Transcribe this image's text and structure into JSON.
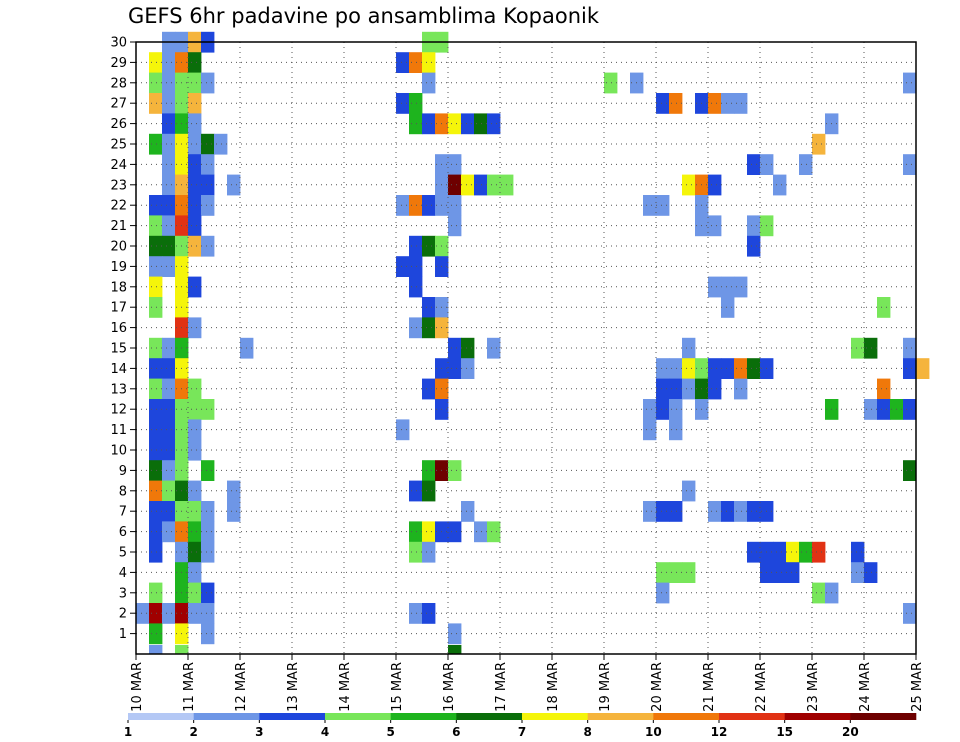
{
  "title": "GEFS 6hr padavine po ansamblima Kopaonik",
  "chart_data": {
    "type": "heatmap",
    "title": "GEFS 6hr padavine po ansamblima Kopaonik",
    "xlabel": "",
    "ylabel": "",
    "x_tick_labels": [
      "10 MAR",
      "11 MAR",
      "12 MAR",
      "13 MAR",
      "14 MAR",
      "15 MAR",
      "16 MAR",
      "17 MAR",
      "18 MAR",
      "19 MAR",
      "20 MAR",
      "21 MAR",
      "22 MAR",
      "23 MAR",
      "24 MAR",
      "25 MAR"
    ],
    "y_tick_labels": [
      "1",
      "2",
      "3",
      "4",
      "5",
      "6",
      "7",
      "8",
      "9",
      "10",
      "11",
      "12",
      "13",
      "14",
      "15",
      "16",
      "17",
      "18",
      "19",
      "20",
      "21",
      "22",
      "23",
      "24",
      "25",
      "26",
      "27",
      "28",
      "29",
      "30"
    ],
    "x_range_days": [
      10,
      25
    ],
    "y_range": [
      0,
      30
    ],
    "step_hours": 6,
    "grid": true,
    "legend_position": "bottom",
    "legend": {
      "colors": [
        "#b4c8f5",
        "#6e96e6",
        "#1e46dc",
        "#78e65a",
        "#1eb41e",
        "#0a6e0a",
        "#f5f50a",
        "#f5b43c",
        "#f0780a",
        "#e13214",
        "#a00000",
        "#6e0000"
      ],
      "labels": [
        "1",
        "2",
        "3",
        "4",
        "5",
        "6",
        "7",
        "8",
        "10",
        "12",
        "15",
        "20"
      ]
    },
    "cells": [
      [
        30,
        10.5,
        1
      ],
      [
        30,
        10.75,
        1
      ],
      [
        30,
        11,
        7
      ],
      [
        30,
        11.25,
        2
      ],
      [
        30,
        15.5,
        3
      ],
      [
        30,
        15.75,
        3
      ],
      [
        29,
        10.25,
        6
      ],
      [
        29,
        10.5,
        1
      ],
      [
        29,
        10.75,
        8
      ],
      [
        29,
        11,
        5
      ],
      [
        29,
        15,
        2
      ],
      [
        29,
        15.25,
        8
      ],
      [
        29,
        15.5,
        6
      ],
      [
        28,
        10.25,
        3
      ],
      [
        28,
        10.5,
        1
      ],
      [
        28,
        10.75,
        3
      ],
      [
        28,
        11,
        3
      ],
      [
        28,
        11.25,
        1
      ],
      [
        28,
        15.5,
        1
      ],
      [
        28,
        19,
        3
      ],
      [
        28,
        19.5,
        1
      ],
      [
        28,
        24.75,
        1
      ],
      [
        27,
        10.25,
        7
      ],
      [
        27,
        10.5,
        1
      ],
      [
        27,
        10.75,
        3
      ],
      [
        27,
        11,
        7
      ],
      [
        27,
        15,
        2
      ],
      [
        27,
        15.25,
        4
      ],
      [
        27,
        20,
        2
      ],
      [
        27,
        20.25,
        8
      ],
      [
        27,
        20.75,
        2
      ],
      [
        27,
        21,
        8
      ],
      [
        27,
        21.25,
        1
      ],
      [
        27,
        21.5,
        1
      ],
      [
        26,
        10.5,
        2
      ],
      [
        26,
        10.75,
        4
      ],
      [
        26,
        11,
        1
      ],
      [
        26,
        15.25,
        4
      ],
      [
        26,
        15.5,
        2
      ],
      [
        26,
        15.75,
        8
      ],
      [
        26,
        16,
        6
      ],
      [
        26,
        16.25,
        2
      ],
      [
        26,
        16.5,
        5
      ],
      [
        26,
        16.75,
        2
      ],
      [
        26,
        23.25,
        1
      ],
      [
        25,
        10.25,
        4
      ],
      [
        25,
        10.5,
        1
      ],
      [
        25,
        10.75,
        6
      ],
      [
        25,
        11,
        1
      ],
      [
        25,
        11.25,
        5
      ],
      [
        25,
        11.5,
        1
      ],
      [
        25,
        23,
        7
      ],
      [
        24,
        10.5,
        1
      ],
      [
        24,
        10.75,
        6
      ],
      [
        24,
        11,
        2
      ],
      [
        24,
        11.25,
        1
      ],
      [
        24,
        15.75,
        1
      ],
      [
        24,
        16,
        1
      ],
      [
        24,
        21.75,
        2
      ],
      [
        24,
        22,
        1
      ],
      [
        24,
        22.75,
        1
      ],
      [
        24,
        24.75,
        1
      ],
      [
        23,
        10.5,
        1
      ],
      [
        23,
        10.75,
        7
      ],
      [
        23,
        11,
        2
      ],
      [
        23,
        11.25,
        2
      ],
      [
        23,
        11.75,
        1
      ],
      [
        23,
        15.75,
        1
      ],
      [
        23,
        16,
        11
      ],
      [
        23,
        16.25,
        6
      ],
      [
        23,
        16.5,
        2
      ],
      [
        23,
        16.75,
        3
      ],
      [
        23,
        17,
        3
      ],
      [
        23,
        20.5,
        6
      ],
      [
        23,
        20.75,
        8
      ],
      [
        23,
        21,
        2
      ],
      [
        23,
        22.25,
        1
      ],
      [
        22,
        10.25,
        2
      ],
      [
        22,
        10.5,
        2
      ],
      [
        22,
        10.75,
        8
      ],
      [
        22,
        11,
        2
      ],
      [
        22,
        11.25,
        1
      ],
      [
        22,
        15,
        1
      ],
      [
        22,
        15.25,
        8
      ],
      [
        22,
        15.5,
        2
      ],
      [
        22,
        15.75,
        1
      ],
      [
        22,
        16,
        1
      ],
      [
        22,
        19.75,
        1
      ],
      [
        22,
        20,
        1
      ],
      [
        22,
        20.75,
        1
      ],
      [
        21,
        10.25,
        3
      ],
      [
        21,
        10.5,
        1
      ],
      [
        21,
        10.75,
        9
      ],
      [
        21,
        11,
        2
      ],
      [
        21,
        16,
        1
      ],
      [
        21,
        20.75,
        1
      ],
      [
        21,
        21,
        1
      ],
      [
        21,
        21.75,
        1
      ],
      [
        21,
        22,
        3
      ],
      [
        20,
        10.25,
        5
      ],
      [
        20,
        10.5,
        5
      ],
      [
        20,
        10.75,
        3
      ],
      [
        20,
        11,
        7
      ],
      [
        20,
        11.25,
        1
      ],
      [
        20,
        15.25,
        2
      ],
      [
        20,
        15.5,
        5
      ],
      [
        20,
        15.75,
        3
      ],
      [
        20,
        21.75,
        2
      ],
      [
        19,
        10.25,
        1
      ],
      [
        19,
        10.5,
        1
      ],
      [
        19,
        10.75,
        6
      ],
      [
        19,
        15,
        2
      ],
      [
        19,
        15.25,
        2
      ],
      [
        19,
        15.75,
        2
      ],
      [
        18,
        10.25,
        6
      ],
      [
        18,
        10.75,
        6
      ],
      [
        18,
        11,
        2
      ],
      [
        18,
        15.25,
        2
      ],
      [
        18,
        21,
        1
      ],
      [
        18,
        21.25,
        1
      ],
      [
        18,
        21.5,
        1
      ],
      [
        17,
        10.25,
        3
      ],
      [
        17,
        10.75,
        6
      ],
      [
        17,
        15.5,
        2
      ],
      [
        17,
        15.75,
        1
      ],
      [
        17,
        21.25,
        1
      ],
      [
        17,
        24.25,
        3
      ],
      [
        16,
        10.75,
        9
      ],
      [
        16,
        11,
        1
      ],
      [
        16,
        15.25,
        1
      ],
      [
        16,
        15.5,
        5
      ],
      [
        16,
        15.75,
        7
      ],
      [
        15,
        10.25,
        3
      ],
      [
        15,
        10.5,
        1
      ],
      [
        15,
        10.75,
        4
      ],
      [
        15,
        12,
        1
      ],
      [
        15,
        16,
        2
      ],
      [
        15,
        16.25,
        5
      ],
      [
        15,
        16.75,
        1
      ],
      [
        15,
        20.5,
        1
      ],
      [
        15,
        23.75,
        3
      ],
      [
        15,
        24,
        5
      ],
      [
        15,
        24.75,
        1
      ],
      [
        14,
        10.25,
        2
      ],
      [
        14,
        10.5,
        2
      ],
      [
        14,
        10.75,
        6
      ],
      [
        14,
        15.75,
        2
      ],
      [
        14,
        16,
        2
      ],
      [
        14,
        16.25,
        1
      ],
      [
        14,
        20,
        1
      ],
      [
        14,
        20.25,
        1
      ],
      [
        14,
        20.5,
        6
      ],
      [
        14,
        20.75,
        3
      ],
      [
        14,
        21,
        2
      ],
      [
        14,
        21.25,
        2
      ],
      [
        14,
        21.5,
        8
      ],
      [
        14,
        21.75,
        5
      ],
      [
        14,
        22,
        2
      ],
      [
        14,
        24.75,
        2
      ],
      [
        14,
        25,
        7
      ],
      [
        13,
        10.25,
        3
      ],
      [
        13,
        10.5,
        1
      ],
      [
        13,
        10.75,
        8
      ],
      [
        13,
        11,
        3
      ],
      [
        13,
        15.5,
        2
      ],
      [
        13,
        15.75,
        8
      ],
      [
        13,
        20,
        2
      ],
      [
        13,
        20.25,
        2
      ],
      [
        13,
        20.5,
        1
      ],
      [
        13,
        20.75,
        5
      ],
      [
        13,
        21,
        2
      ],
      [
        13,
        21.5,
        1
      ],
      [
        13,
        24.25,
        8
      ],
      [
        12,
        10.25,
        2
      ],
      [
        12,
        10.5,
        2
      ],
      [
        12,
        10.75,
        3
      ],
      [
        12,
        11,
        3
      ],
      [
        12,
        11.25,
        3
      ],
      [
        12,
        15.75,
        2
      ],
      [
        12,
        19.75,
        1
      ],
      [
        12,
        20,
        2
      ],
      [
        12,
        20.25,
        1
      ],
      [
        12,
        20.75,
        1
      ],
      [
        12,
        23.25,
        4
      ],
      [
        12,
        24,
        1
      ],
      [
        12,
        24.25,
        2
      ],
      [
        12,
        24.5,
        4
      ],
      [
        12,
        24.75,
        2
      ],
      [
        11,
        10.25,
        2
      ],
      [
        11,
        10.5,
        2
      ],
      [
        11,
        10.75,
        3
      ],
      [
        11,
        11,
        1
      ],
      [
        11,
        15,
        1
      ],
      [
        11,
        19.75,
        1
      ],
      [
        11,
        20.25,
        1
      ],
      [
        10,
        10.25,
        2
      ],
      [
        10,
        10.5,
        2
      ],
      [
        10,
        10.75,
        3
      ],
      [
        10,
        11,
        1
      ],
      [
        9,
        10.25,
        5
      ],
      [
        9,
        10.5,
        1
      ],
      [
        9,
        10.75,
        3
      ],
      [
        9,
        11.25,
        4
      ],
      [
        9,
        15.5,
        4
      ],
      [
        9,
        15.75,
        11
      ],
      [
        9,
        16,
        3
      ],
      [
        9,
        24.75,
        5
      ],
      [
        8,
        10.25,
        8
      ],
      [
        8,
        10.5,
        3
      ],
      [
        8,
        10.75,
        5
      ],
      [
        8,
        11,
        1
      ],
      [
        8,
        11.75,
        1
      ],
      [
        8,
        15.25,
        2
      ],
      [
        8,
        15.5,
        5
      ],
      [
        8,
        20.5,
        1
      ],
      [
        7,
        10.25,
        2
      ],
      [
        7,
        10.5,
        2
      ],
      [
        7,
        10.75,
        3
      ],
      [
        7,
        11,
        3
      ],
      [
        7,
        11.25,
        1
      ],
      [
        7,
        11.75,
        1
      ],
      [
        7,
        16.25,
        1
      ],
      [
        7,
        19.75,
        1
      ],
      [
        7,
        20,
        2
      ],
      [
        7,
        20.25,
        2
      ],
      [
        7,
        21,
        1
      ],
      [
        7,
        21.25,
        2
      ],
      [
        7,
        21.5,
        1
      ],
      [
        7,
        21.75,
        2
      ],
      [
        7,
        22,
        2
      ],
      [
        6,
        10.25,
        2
      ],
      [
        6,
        10.5,
        1
      ],
      [
        6,
        10.75,
        8
      ],
      [
        6,
        11,
        4
      ],
      [
        6,
        11.25,
        1
      ],
      [
        6,
        15.25,
        4
      ],
      [
        6,
        15.5,
        6
      ],
      [
        6,
        15.75,
        2
      ],
      [
        6,
        16,
        2
      ],
      [
        6,
        16.5,
        1
      ],
      [
        6,
        16.75,
        3
      ],
      [
        5,
        10.25,
        2
      ],
      [
        5,
        10.75,
        1
      ],
      [
        5,
        11,
        5
      ],
      [
        5,
        11.25,
        1
      ],
      [
        5,
        15.25,
        3
      ],
      [
        5,
        15.5,
        1
      ],
      [
        5,
        21.75,
        2
      ],
      [
        5,
        22,
        2
      ],
      [
        5,
        22.25,
        2
      ],
      [
        5,
        22.5,
        6
      ],
      [
        5,
        22.75,
        4
      ],
      [
        5,
        23,
        9
      ],
      [
        5,
        23.75,
        2
      ],
      [
        4,
        10.75,
        4
      ],
      [
        4,
        11,
        1
      ],
      [
        4,
        20,
        3
      ],
      [
        4,
        20.25,
        3
      ],
      [
        4,
        20.5,
        3
      ],
      [
        4,
        22,
        2
      ],
      [
        4,
        22.25,
        2
      ],
      [
        4,
        22.5,
        2
      ],
      [
        4,
        23.75,
        1
      ],
      [
        4,
        24,
        2
      ],
      [
        3,
        10.25,
        3
      ],
      [
        3,
        10.75,
        4
      ],
      [
        3,
        11,
        3
      ],
      [
        3,
        11.25,
        2
      ],
      [
        3,
        20,
        1
      ],
      [
        3,
        23,
        3
      ],
      [
        3,
        23.25,
        1
      ],
      [
        2,
        10,
        1
      ],
      [
        2,
        10.25,
        10
      ],
      [
        2,
        10.5,
        1
      ],
      [
        2,
        10.75,
        10
      ],
      [
        2,
        11,
        1
      ],
      [
        2,
        11.25,
        1
      ],
      [
        2,
        15.25,
        1
      ],
      [
        2,
        15.5,
        2
      ],
      [
        2,
        24.75,
        1
      ],
      [
        1,
        10.25,
        4
      ],
      [
        1,
        10.75,
        6
      ],
      [
        1,
        11.25,
        1
      ],
      [
        1,
        16,
        1
      ]
    ],
    "bottom_marks": [
      [
        10.25,
        1
      ],
      [
        10.75,
        3
      ],
      [
        16,
        5
      ]
    ]
  }
}
